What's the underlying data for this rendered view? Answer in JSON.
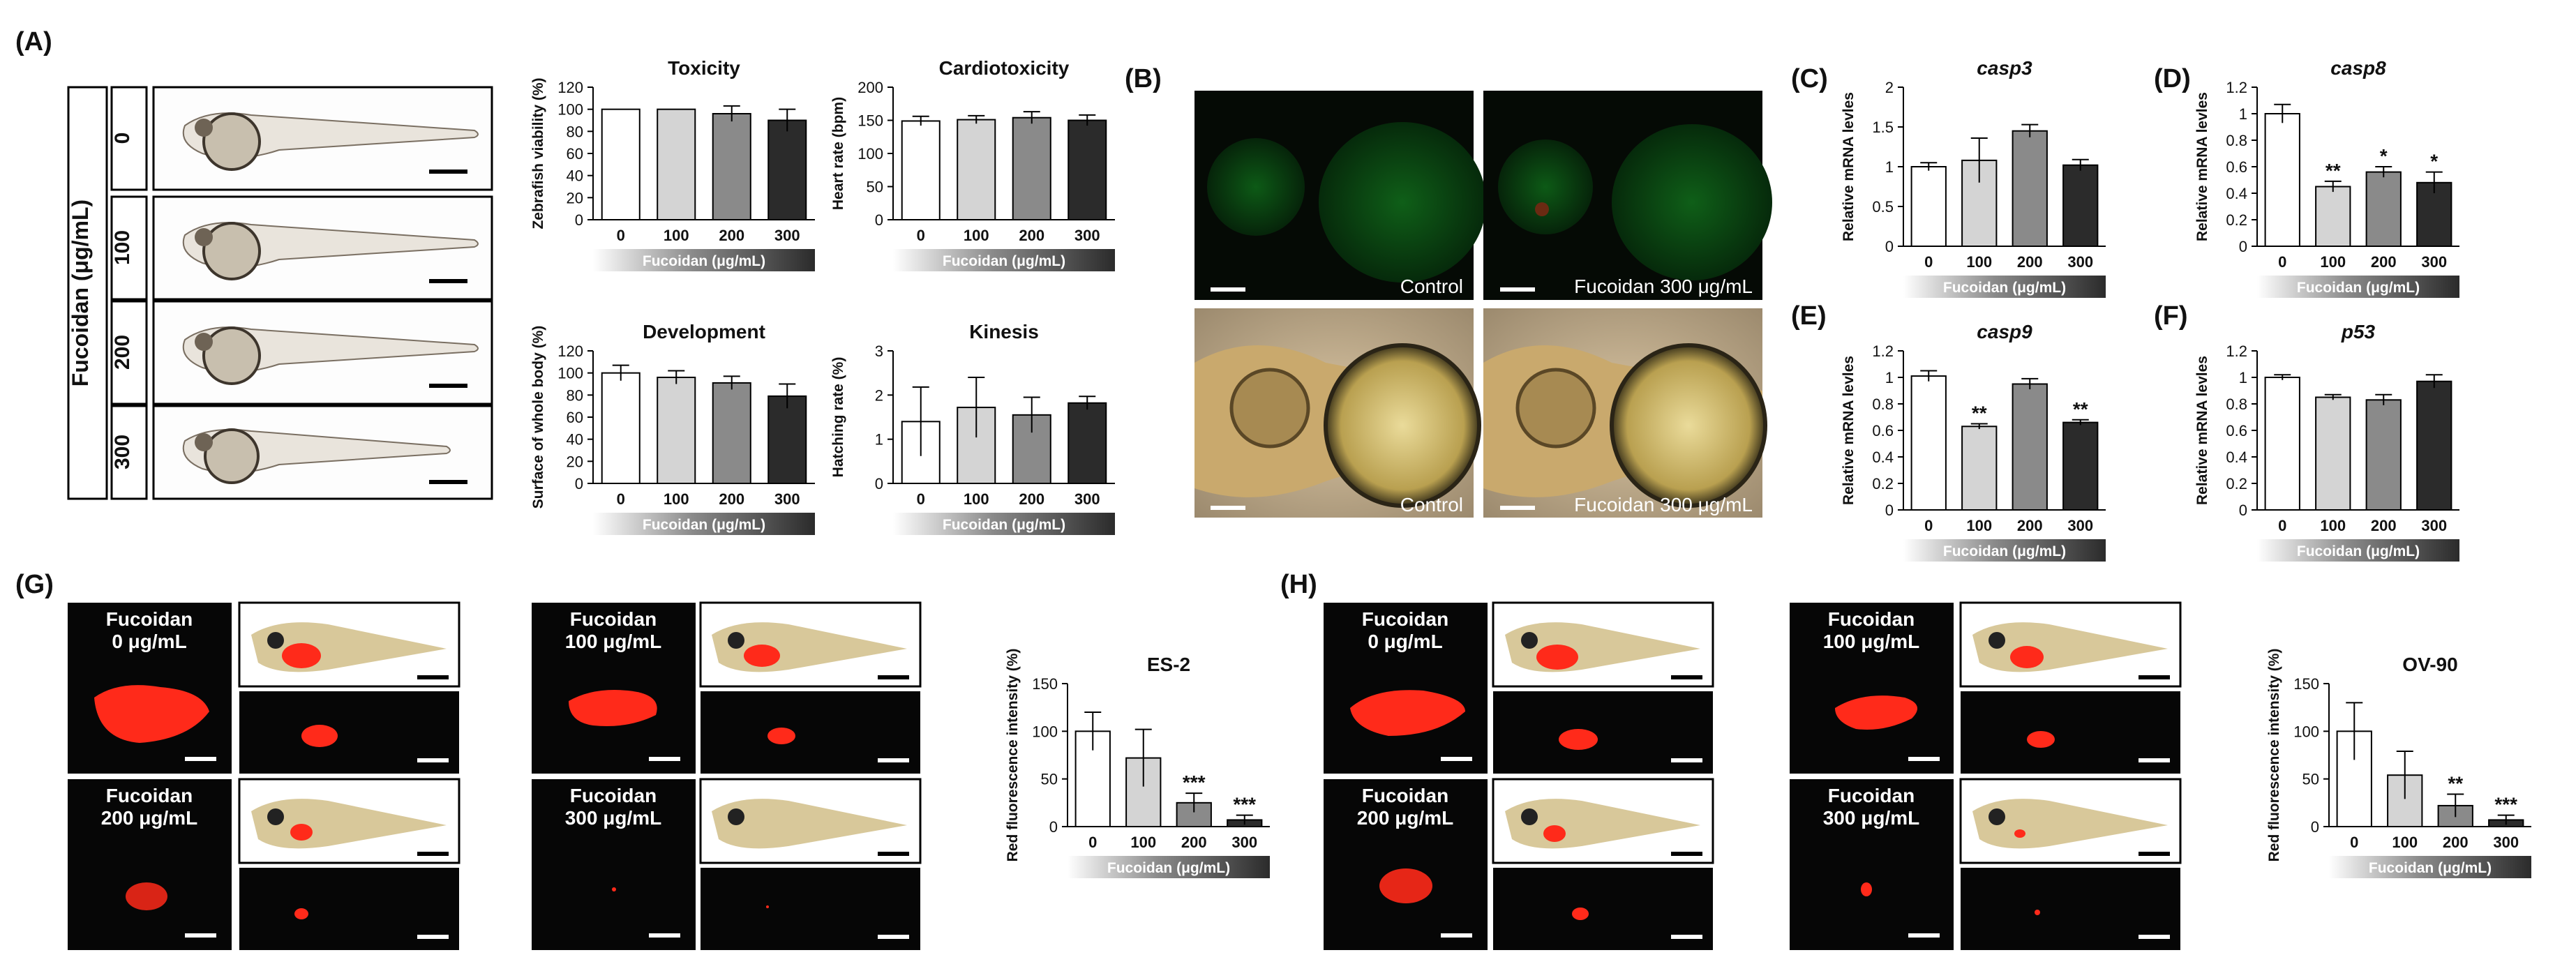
{
  "panels": {
    "A": {
      "letter": "(A)",
      "dose_axis": "Fucoidan (μg/mL)",
      "doses": [
        "0",
        "100",
        "200",
        "300"
      ]
    },
    "B": {
      "letter": "(B)",
      "labels": {
        "control_top": "Control",
        "treated_top": "Fucoidan 300 μg/mL",
        "control_bottom": "Control",
        "treated_bottom": "Fucoidan 300 μg/mL"
      }
    },
    "C": {
      "letter": "(C)"
    },
    "D": {
      "letter": "(D)"
    },
    "E": {
      "letter": "(E)"
    },
    "F": {
      "letter": "(F)"
    },
    "G": {
      "letter": "(G)",
      "images": [
        "Fucoidan\n0 μg/mL",
        "Fucoidan\n100 μg/mL",
        "Fucoidan\n200 μg/mL",
        "Fucoidan\n300 μg/mL"
      ]
    },
    "H": {
      "letter": "(H)",
      "images": [
        "Fucoidan\n0 μg/mL",
        "Fucoidan\n100 μg/mL",
        "Fucoidan\n200 μg/mL",
        "Fucoidan\n300 μg/mL"
      ]
    }
  },
  "chart_data": [
    {
      "id": "toxicity",
      "type": "bar",
      "title": "Toxicity",
      "ylabel": "Zebrafish viability (%)",
      "xlabel": "Fucoidan (μg/mL)",
      "categories": [
        "0",
        "100",
        "200",
        "300"
      ],
      "values": [
        100,
        100,
        96,
        90
      ],
      "errors": [
        0,
        0,
        7,
        10
      ],
      "ylim": [
        0,
        120
      ],
      "yticks": [
        0,
        20,
        40,
        60,
        80,
        100,
        120
      ],
      "significance": [
        "",
        "",
        "",
        ""
      ]
    },
    {
      "id": "cardiotoxicity",
      "type": "bar",
      "title": "Cardiotoxicity",
      "ylabel": "Heart rate (bpm)",
      "xlabel": "Fucoidan (μg/mL)",
      "categories": [
        "0",
        "100",
        "200",
        "300"
      ],
      "values": [
        149,
        151,
        154,
        150
      ],
      "errors": [
        7,
        6,
        9,
        8
      ],
      "ylim": [
        0,
        200
      ],
      "yticks": [
        0,
        50,
        100,
        150,
        200
      ],
      "significance": [
        "",
        "",
        "",
        ""
      ]
    },
    {
      "id": "development",
      "type": "bar",
      "title": "Development",
      "ylabel": "Surface of whole body (%)",
      "xlabel": "Fucoidan (μg/mL)",
      "categories": [
        "0",
        "100",
        "200",
        "300"
      ],
      "values": [
        100,
        96,
        91,
        79
      ],
      "errors": [
        7,
        6,
        6,
        11
      ],
      "ylim": [
        0,
        120
      ],
      "yticks": [
        0,
        20,
        40,
        60,
        80,
        100,
        120
      ],
      "significance": [
        "",
        "",
        "",
        ""
      ]
    },
    {
      "id": "kinesis",
      "type": "bar",
      "title": "Kinesis",
      "ylabel": "Hatching rate (%)",
      "xlabel": "Fucoidan (μg/mL)",
      "categories": [
        "0",
        "100",
        "200",
        "300"
      ],
      "values": [
        1.4,
        1.72,
        1.55,
        1.82
      ],
      "errors": [
        0.78,
        0.68,
        0.4,
        0.15
      ],
      "ylim": [
        0,
        3
      ],
      "yticks": [
        0,
        1,
        2,
        3
      ],
      "significance": [
        "",
        "",
        "",
        ""
      ]
    },
    {
      "id": "casp3",
      "type": "bar",
      "title": "casp3",
      "italic_title": true,
      "ylabel": "Relative mRNA levles",
      "xlabel": "Fucoidan (μg/mL)",
      "categories": [
        "0",
        "100",
        "200",
        "300"
      ],
      "values": [
        1.0,
        1.08,
        1.45,
        1.02
      ],
      "errors": [
        0.05,
        0.28,
        0.08,
        0.07
      ],
      "ylim": [
        0,
        2
      ],
      "yticks": [
        0,
        0.5,
        1,
        1.5,
        2
      ],
      "significance": [
        "",
        "",
        "",
        ""
      ]
    },
    {
      "id": "casp8",
      "type": "bar",
      "title": "casp8",
      "italic_title": true,
      "ylabel": "Relative mRNA levles",
      "xlabel": "Fucoidan (μg/mL)",
      "categories": [
        "0",
        "100",
        "200",
        "300"
      ],
      "values": [
        1.0,
        0.45,
        0.56,
        0.48
      ],
      "errors": [
        0.07,
        0.04,
        0.04,
        0.08
      ],
      "ylim": [
        0,
        1.2
      ],
      "yticks": [
        0,
        0.2,
        0.4,
        0.6,
        0.8,
        1,
        1.2
      ],
      "significance": [
        "",
        "**",
        "*",
        "*"
      ]
    },
    {
      "id": "casp9",
      "type": "bar",
      "title": "casp9",
      "italic_title": true,
      "ylabel": "Relative mRNA levles",
      "xlabel": "Fucoidan (μg/mL)",
      "categories": [
        "0",
        "100",
        "200",
        "300"
      ],
      "values": [
        1.01,
        0.63,
        0.95,
        0.66
      ],
      "errors": [
        0.04,
        0.02,
        0.04,
        0.02
      ],
      "ylim": [
        0,
        1.2
      ],
      "yticks": [
        0,
        0.2,
        0.4,
        0.6,
        0.8,
        1,
        1.2
      ],
      "significance": [
        "",
        "**",
        "",
        "**"
      ]
    },
    {
      "id": "p53",
      "type": "bar",
      "title": "p53",
      "italic_title": true,
      "ylabel": "Relative mRNA levles",
      "xlabel": "Fucoidan (μg/mL)",
      "categories": [
        "0",
        "100",
        "200",
        "300"
      ],
      "values": [
        1.0,
        0.85,
        0.83,
        0.97
      ],
      "errors": [
        0.02,
        0.02,
        0.04,
        0.05
      ],
      "ylim": [
        0,
        1.2
      ],
      "yticks": [
        0,
        0.2,
        0.4,
        0.6,
        0.8,
        1,
        1.2
      ],
      "significance": [
        "",
        "",
        "",
        ""
      ]
    },
    {
      "id": "es2",
      "type": "bar",
      "title": "ES-2",
      "ylabel": "Red fluorescence intensity (%)",
      "xlabel": "Fucoidan (μg/mL)",
      "categories": [
        "0",
        "100",
        "200",
        "300"
      ],
      "values": [
        100,
        72,
        25,
        7
      ],
      "errors": [
        20,
        30,
        10,
        5
      ],
      "ylim": [
        0,
        150
      ],
      "yticks": [
        0,
        50,
        100,
        150
      ],
      "significance": [
        "",
        "",
        "***",
        "***"
      ]
    },
    {
      "id": "ov90",
      "type": "bar",
      "title": "OV-90",
      "ylabel": "Red fluorescence intensity (%)",
      "xlabel": "Fucoidan (μg/mL)",
      "categories": [
        "0",
        "100",
        "200",
        "300"
      ],
      "values": [
        100,
        54,
        22,
        7
      ],
      "errors": [
        30,
        25,
        12,
        5
      ],
      "ylim": [
        0,
        150
      ],
      "yticks": [
        0,
        50,
        100,
        150
      ],
      "significance": [
        "",
        "",
        "**",
        "***"
      ]
    }
  ],
  "colors": {
    "bar_fills": [
      "#ffffff",
      "#d4d4d4",
      "#8a8a8a",
      "#2b2b2b"
    ],
    "dark_bg": "#060606",
    "fluorescence_green": "#1f8a2a",
    "red_signal": "#ff2a1a",
    "gradient_start": "#ffffff",
    "gradient_end": "#2b2b2b"
  }
}
